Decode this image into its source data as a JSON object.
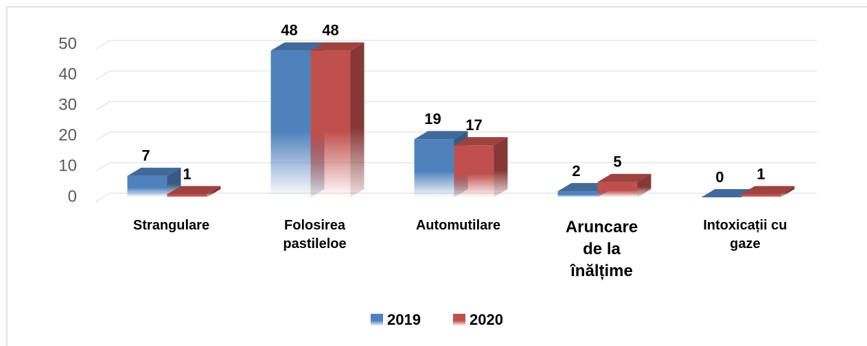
{
  "chart_data": {
    "type": "bar3d",
    "categories": [
      "Strangulare",
      "Folosirea pastileloe",
      "Automutilare",
      "Aruncare de la înălțime",
      "Intoxicații cu gaze"
    ],
    "series": [
      {
        "name": "2019",
        "color": "#4f81bd",
        "values": [
          7,
          48,
          19,
          2,
          0
        ]
      },
      {
        "name": "2020",
        "color": "#c0504d",
        "values": [
          1,
          48,
          17,
          5,
          1
        ]
      }
    ],
    "ylim": [
      0,
      50
    ],
    "yticks": [
      0,
      10,
      20,
      30,
      40,
      50
    ],
    "grid": true,
    "legend": "bottom"
  }
}
